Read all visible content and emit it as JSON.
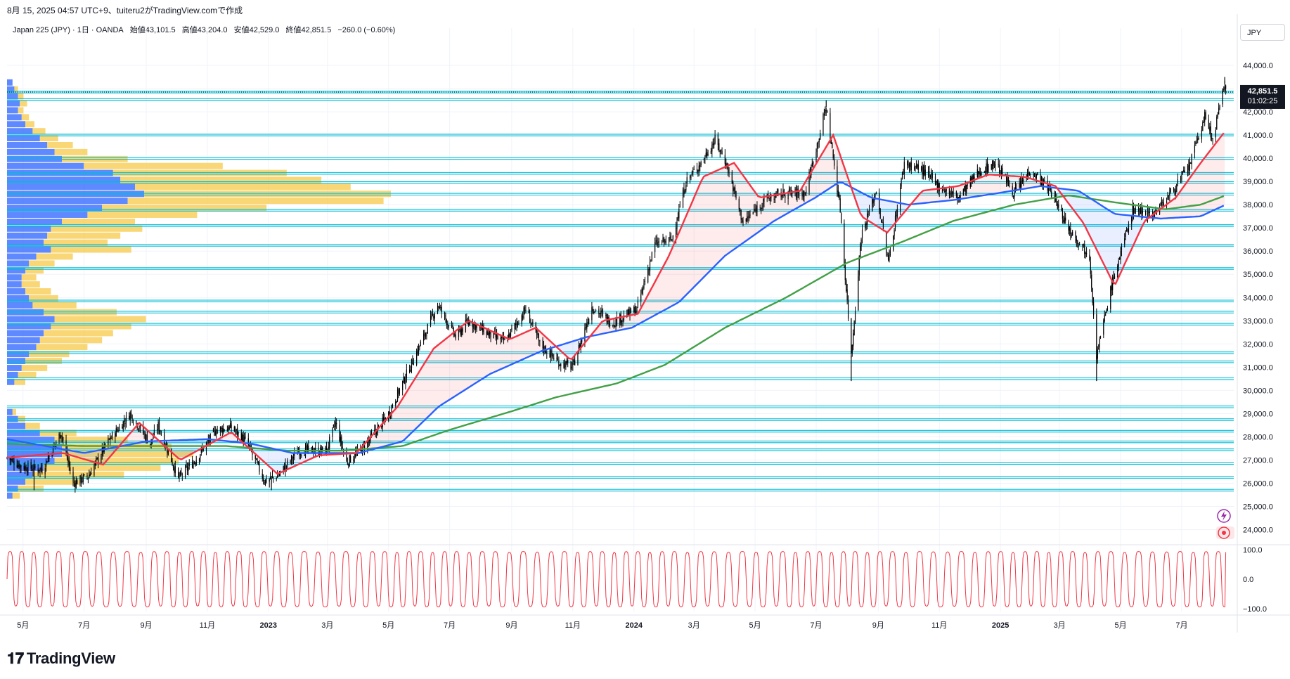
{
  "caption": "8月 15, 2025 04:57 UTC+9、tuiteru2がTradingView.comで作成",
  "header": {
    "symbol": "Japan 225 (JPY) · 1日 · OANDA",
    "open": "始値43,101.5",
    "high": "高値43,204.0",
    "low": "安値42,529.0",
    "close": "終値42,851.5",
    "change": "−260.0 (−0.60%)"
  },
  "currency": "JPY",
  "price_label": "42,851.5",
  "countdown_label": "01:02:25",
  "brand": "TradingView",
  "icons": [
    "lightning-icon",
    "target-icon",
    "tradingview-logo-icon"
  ],
  "colors": {
    "candle": "#000000",
    "ema_fast": "#f23645",
    "ma_mid": "#2962ff",
    "ma_slow": "#43a047",
    "hlines": "#00bcd4",
    "vp_up": "#2962ff",
    "vp_down": "#f7c948",
    "oscillator": "#f23645"
  },
  "chart_data": [
    {
      "type": "candlestick",
      "series_name": "Japan 225 (JPY)",
      "y_range": [
        23500,
        45000
      ],
      "y_ticks": [
        "44,000.0",
        "43,000.0",
        "42,000.0",
        "41,000.0",
        "40,000.0",
        "39,000.0",
        "38,000.0",
        "37,000.0",
        "36,000.0",
        "35,000.0",
        "34,000.0",
        "33,000.0",
        "32,000.0",
        "31,000.0",
        "30,000.0",
        "29,000.0",
        "28,000.0",
        "27,000.0",
        "26,000.0",
        "25,000.0",
        "24,000.0"
      ],
      "y_tick_values": [
        44000,
        43000,
        42000,
        41000,
        40000,
        39000,
        38000,
        37000,
        36000,
        35000,
        34000,
        33000,
        32000,
        31000,
        30000,
        29000,
        28000,
        27000,
        26000,
        25000,
        24000
      ],
      "x_labels": [
        "5月",
        "7月",
        "9月",
        "11月",
        "2023",
        "3月",
        "5月",
        "7月",
        "9月",
        "11月",
        "2024",
        "3月",
        "5月",
        "7月",
        "9月",
        "11月",
        "2025",
        "3月",
        "5月",
        "7月"
      ],
      "x_label_dates": [
        "2022-05",
        "2022-07",
        "2022-09",
        "2022-11",
        "2023-01",
        "2023-03",
        "2023-05",
        "2023-07",
        "2023-09",
        "2023-11",
        "2024-01",
        "2024-03",
        "2024-05",
        "2024-07",
        "2024-09",
        "2024-11",
        "2025-01",
        "2025-03",
        "2025-05",
        "2025-07"
      ],
      "close_path": [
        [
          "2022-04-15",
          27100
        ],
        [
          "2022-05-01",
          26700
        ],
        [
          "2022-05-20",
          26600
        ],
        [
          "2022-06-08",
          28200
        ],
        [
          "2022-06-20",
          26000
        ],
        [
          "2022-07-05",
          26300
        ],
        [
          "2022-07-25",
          27800
        ],
        [
          "2022-08-16",
          29000
        ],
        [
          "2022-09-05",
          27700
        ],
        [
          "2022-09-13",
          28500
        ],
        [
          "2022-10-03",
          26200
        ],
        [
          "2022-10-20",
          27000
        ],
        [
          "2022-11-10",
          28300
        ],
        [
          "2022-11-25",
          28400
        ],
        [
          "2022-12-10",
          27800
        ],
        [
          "2022-12-28",
          26100
        ],
        [
          "2023-01-10",
          26300
        ],
        [
          "2023-01-31",
          27400
        ],
        [
          "2023-02-28",
          27400
        ],
        [
          "2023-03-09",
          28600
        ],
        [
          "2023-03-20",
          26900
        ],
        [
          "2023-04-05",
          27500
        ],
        [
          "2023-04-30",
          28900
        ],
        [
          "2023-05-18",
          30600
        ],
        [
          "2023-06-05",
          32300
        ],
        [
          "2023-06-19",
          33700
        ],
        [
          "2023-07-07",
          32300
        ],
        [
          "2023-07-20",
          33000
        ],
        [
          "2023-08-10",
          32400
        ],
        [
          "2023-08-25",
          32100
        ],
        [
          "2023-09-15",
          33500
        ],
        [
          "2023-09-29",
          32000
        ],
        [
          "2023-10-18",
          31200
        ],
        [
          "2023-11-01",
          31000
        ],
        [
          "2023-11-20",
          33600
        ],
        [
          "2023-12-10",
          32900
        ],
        [
          "2024-01-04",
          33500
        ],
        [
          "2024-01-22",
          36300
        ],
        [
          "2024-02-08",
          36500
        ],
        [
          "2024-02-22",
          39000
        ],
        [
          "2024-03-08",
          39800
        ],
        [
          "2024-03-22",
          40800
        ],
        [
          "2024-04-02",
          39800
        ],
        [
          "2024-04-19",
          37200
        ],
        [
          "2024-05-10",
          38200
        ],
        [
          "2024-05-30",
          38500
        ],
        [
          "2024-06-20",
          38500
        ],
        [
          "2024-07-11",
          42200
        ],
        [
          "2024-07-25",
          37800
        ],
        [
          "2024-08-05",
          31500
        ],
        [
          "2024-08-15",
          36700
        ],
        [
          "2024-08-30",
          38600
        ],
        [
          "2024-09-11",
          35500
        ],
        [
          "2024-09-27",
          39800
        ],
        [
          "2024-10-15",
          39500
        ],
        [
          "2024-10-31",
          38800
        ],
        [
          "2024-11-20",
          38300
        ],
        [
          "2024-12-10",
          39400
        ],
        [
          "2024-12-27",
          39800
        ],
        [
          "2025-01-15",
          38500
        ],
        [
          "2025-01-31",
          39500
        ],
        [
          "2025-02-20",
          38600
        ],
        [
          "2025-03-10",
          37000
        ],
        [
          "2025-03-31",
          35800
        ],
        [
          "2025-04-07",
          31500
        ],
        [
          "2025-04-22",
          34500
        ],
        [
          "2025-05-13",
          37800
        ],
        [
          "2025-06-03",
          37600
        ],
        [
          "2025-06-20",
          38500
        ],
        [
          "2025-07-08",
          39600
        ],
        [
          "2025-07-24",
          41800
        ],
        [
          "2025-08-01",
          40800
        ],
        [
          "2025-08-13",
          43200
        ],
        [
          "2025-08-14",
          42851.5
        ]
      ],
      "range_low": [
        [
          "2022-05-12",
          25700
        ],
        [
          "2023-01-04",
          25700
        ],
        [
          "2024-08-05",
          30400
        ],
        [
          "2025-04-07",
          30400
        ]
      ],
      "range_high": [
        [
          "2024-07-11",
          42500
        ],
        [
          "2025-08-13",
          43500
        ]
      ],
      "last_close": 42851.5,
      "horizontal_levels": [
        42850,
        42530,
        41000,
        39990,
        39350,
        38950,
        38450,
        37760,
        37100,
        36250,
        35250,
        33850,
        33370,
        32850,
        31620,
        31230,
        30500,
        29290,
        28740,
        28240,
        27780,
        27440,
        26850,
        26250,
        25700
      ],
      "ema_fast": [
        [
          "2022-04-15",
          27100
        ],
        [
          "2022-06-10",
          27300
        ],
        [
          "2022-07-20",
          26800
        ],
        [
          "2022-08-25",
          28600
        ],
        [
          "2022-10-05",
          27000
        ],
        [
          "2022-11-25",
          28200
        ],
        [
          "2023-01-10",
          26400
        ],
        [
          "2023-02-20",
          27200
        ],
        [
          "2023-03-30",
          27300
        ],
        [
          "2023-05-10",
          29300
        ],
        [
          "2023-06-15",
          31800
        ],
        [
          "2023-07-20",
          33000
        ],
        [
          "2023-08-30",
          32200
        ],
        [
          "2023-09-25",
          32700
        ],
        [
          "2023-10-30",
          31300
        ],
        [
          "2023-12-01",
          33000
        ],
        [
          "2024-01-05",
          33300
        ],
        [
          "2024-02-05",
          35800
        ],
        [
          "2024-03-10",
          39200
        ],
        [
          "2024-04-10",
          39800
        ],
        [
          "2024-05-05",
          38300
        ],
        [
          "2024-06-15",
          38600
        ],
        [
          "2024-07-18",
          41000
        ],
        [
          "2024-08-15",
          37500
        ],
        [
          "2024-09-10",
          36800
        ],
        [
          "2024-10-15",
          38600
        ],
        [
          "2024-11-20",
          38800
        ],
        [
          "2024-12-20",
          39300
        ],
        [
          "2025-01-25",
          39200
        ],
        [
          "2025-02-25",
          38800
        ],
        [
          "2025-03-25",
          37200
        ],
        [
          "2025-04-25",
          34500
        ],
        [
          "2025-05-25",
          37300
        ],
        [
          "2025-06-25",
          38300
        ],
        [
          "2025-07-20",
          39800
        ],
        [
          "2025-08-14",
          41200
        ]
      ],
      "ma_mid": [
        [
          "2022-04-15",
          27900
        ],
        [
          "2022-07-01",
          27300
        ],
        [
          "2022-09-01",
          27800
        ],
        [
          "2022-11-01",
          27900
        ],
        [
          "2022-12-15",
          27700
        ],
        [
          "2023-01-25",
          27300
        ],
        [
          "2023-04-01",
          27300
        ],
        [
          "2023-05-15",
          27800
        ],
        [
          "2023-06-20",
          29300
        ],
        [
          "2023-08-10",
          30700
        ],
        [
          "2023-10-01",
          31700
        ],
        [
          "2023-11-15",
          32300
        ],
        [
          "2023-12-30",
          32700
        ],
        [
          "2024-02-15",
          33800
        ],
        [
          "2024-04-01",
          35800
        ],
        [
          "2024-05-20",
          37300
        ],
        [
          "2024-06-30",
          38300
        ],
        [
          "2024-07-25",
          39000
        ],
        [
          "2024-08-25",
          38300
        ],
        [
          "2024-10-01",
          38000
        ],
        [
          "2024-11-15",
          38200
        ],
        [
          "2024-12-30",
          38500
        ],
        [
          "2025-02-10",
          38800
        ],
        [
          "2025-03-20",
          38600
        ],
        [
          "2025-04-25",
          37600
        ],
        [
          "2025-06-10",
          37400
        ],
        [
          "2025-07-20",
          37500
        ],
        [
          "2025-08-14",
          38000
        ]
      ],
      "ma_slow": [
        [
          "2022-04-15",
          27700
        ],
        [
          "2022-07-01",
          27600
        ],
        [
          "2022-09-20",
          27600
        ],
        [
          "2022-11-20",
          27600
        ],
        [
          "2023-01-20",
          27400
        ],
        [
          "2023-03-15",
          27400
        ],
        [
          "2023-05-15",
          27600
        ],
        [
          "2023-07-01",
          28300
        ],
        [
          "2023-09-01",
          29100
        ],
        [
          "2023-10-15",
          29700
        ],
        [
          "2023-12-15",
          30300
        ],
        [
          "2024-02-01",
          31100
        ],
        [
          "2024-04-01",
          32700
        ],
        [
          "2024-06-01",
          34000
        ],
        [
          "2024-08-01",
          35500
        ],
        [
          "2024-09-25",
          36400
        ],
        [
          "2024-11-15",
          37300
        ],
        [
          "2025-01-15",
          38000
        ],
        [
          "2025-03-10",
          38400
        ],
        [
          "2025-04-25",
          38100
        ],
        [
          "2025-06-15",
          37800
        ],
        [
          "2025-07-20",
          38000
        ],
        [
          "2025-08-14",
          38400
        ]
      ],
      "volume_profile": {
        "bins": [
          [
            43400,
            3,
            0
          ],
          [
            43100,
            4,
            2
          ],
          [
            42800,
            6,
            3
          ],
          [
            42500,
            7,
            4
          ],
          [
            42200,
            6,
            3
          ],
          [
            41900,
            8,
            4
          ],
          [
            41600,
            10,
            5
          ],
          [
            41300,
            14,
            7
          ],
          [
            41000,
            18,
            10
          ],
          [
            40700,
            22,
            14
          ],
          [
            40400,
            26,
            18
          ],
          [
            40100,
            30,
            36
          ],
          [
            39800,
            42,
            76
          ],
          [
            39500,
            58,
            95
          ],
          [
            39200,
            62,
            110
          ],
          [
            38900,
            70,
            118
          ],
          [
            38600,
            75,
            135
          ],
          [
            38300,
            66,
            140
          ],
          [
            38000,
            52,
            90
          ],
          [
            37700,
            44,
            60
          ],
          [
            37400,
            30,
            40
          ],
          [
            37100,
            24,
            50
          ],
          [
            36800,
            22,
            40
          ],
          [
            36500,
            20,
            35
          ],
          [
            36200,
            24,
            44
          ],
          [
            35900,
            16,
            20
          ],
          [
            35600,
            12,
            14
          ],
          [
            35300,
            10,
            10
          ],
          [
            35000,
            8,
            8
          ],
          [
            34700,
            8,
            10
          ],
          [
            34400,
            10,
            14
          ],
          [
            34100,
            12,
            16
          ],
          [
            33800,
            14,
            24
          ],
          [
            33500,
            20,
            40
          ],
          [
            33200,
            26,
            50
          ],
          [
            32900,
            24,
            44
          ],
          [
            32600,
            20,
            38
          ],
          [
            32300,
            18,
            34
          ],
          [
            32000,
            16,
            28
          ],
          [
            31700,
            12,
            22
          ],
          [
            31400,
            10,
            20
          ],
          [
            31100,
            8,
            14
          ],
          [
            30800,
            6,
            10
          ],
          [
            30500,
            4,
            6
          ],
          [
            29200,
            3,
            2
          ],
          [
            28900,
            6,
            4
          ],
          [
            28600,
            10,
            8
          ],
          [
            28300,
            18,
            20
          ],
          [
            28000,
            26,
            40
          ],
          [
            27700,
            30,
            60
          ],
          [
            27400,
            30,
            72
          ],
          [
            27100,
            26,
            68
          ],
          [
            26800,
            20,
            64
          ],
          [
            26500,
            14,
            50
          ],
          [
            26200,
            10,
            30
          ],
          [
            25900,
            6,
            14
          ],
          [
            25600,
            3,
            4
          ]
        ]
      }
    },
    {
      "type": "line",
      "series_name": "oscillator",
      "y_ticks": [
        "100.0",
        "0.0",
        "−100.0"
      ],
      "y_tick_values": [
        100,
        0,
        -100
      ],
      "y_range": [
        -110,
        110
      ],
      "cycles_count": 95,
      "last_value": 92
    }
  ]
}
